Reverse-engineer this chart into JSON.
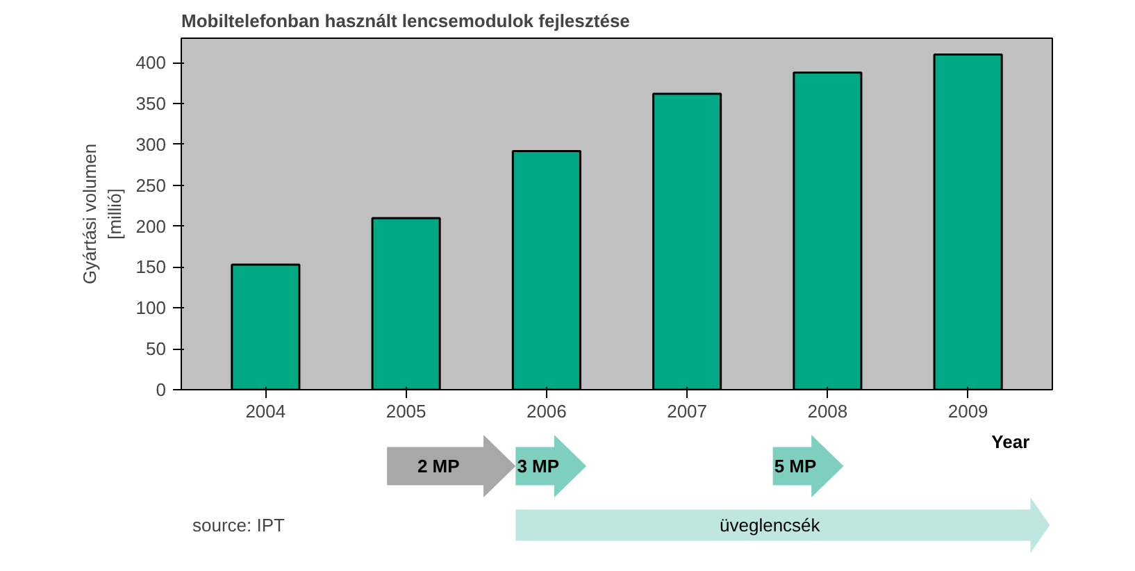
{
  "chart_data": {
    "type": "bar",
    "title": "Mobiltelefonban használt lencsemodulok fejlesztése",
    "xlabel": "Year",
    "ylabel": "Gyártási volumen\n[millió]",
    "categories": [
      "2004",
      "2005",
      "2006",
      "2007",
      "2008",
      "2009"
    ],
    "values": [
      153,
      210,
      292,
      362,
      388,
      410
    ],
    "color": "#00a884",
    "ylim": [
      0,
      430
    ],
    "yticks": [
      0,
      50,
      100,
      150,
      200,
      250,
      300,
      350,
      400
    ],
    "grid": false,
    "annotations": [
      "2 MP",
      "3 MP",
      "5 MP",
      "üveglencsék",
      "source: IPT"
    ]
  }
}
